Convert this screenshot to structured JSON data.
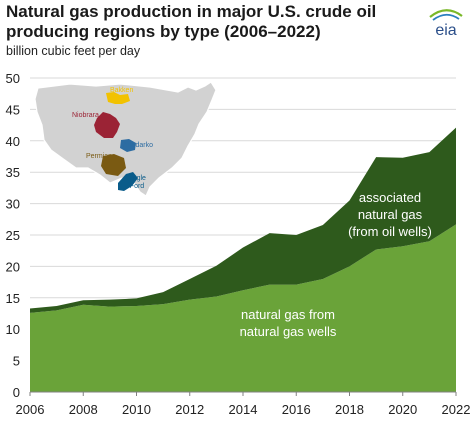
{
  "header": {
    "title_line1": "Natural gas production in major U.S. crude oil",
    "title_line2": "producing regions by type (2006–2022)",
    "subtitle": "billion cubic feet per day",
    "logo_text": "eia"
  },
  "inset_map": {
    "regions": [
      {
        "name": "Bakken",
        "color": "#f2c200"
      },
      {
        "name": "Niobrara",
        "color": "#9b2335"
      },
      {
        "name": "Anadarko",
        "color": "#2d6ca2"
      },
      {
        "name": "Permian",
        "color": "#7a5a12"
      },
      {
        "name": "Eagle Ford",
        "color": "#0a5c8a"
      }
    ]
  },
  "labels": {
    "associated_line1": "associated",
    "associated_line2": "natural gas",
    "associated_line3": "(from oil wells)",
    "natgas_line1": "natural gas from",
    "natgas_line2": "natural gas wells"
  },
  "colors": {
    "associated": "#2e5a1c",
    "nonassociated": "#6aa339",
    "grid": "#d9d9d9",
    "axis": "#808080"
  },
  "chart_data": {
    "type": "area",
    "stacked": true,
    "x": [
      2006,
      2007,
      2008,
      2009,
      2010,
      2011,
      2012,
      2013,
      2014,
      2015,
      2016,
      2017,
      2018,
      2019,
      2020,
      2021,
      2022
    ],
    "series": [
      {
        "name": "natural gas from natural gas wells",
        "values": [
          12.6,
          13.0,
          13.9,
          13.6,
          13.7,
          14.0,
          14.7,
          15.2,
          16.2,
          17.1,
          17.1,
          18.0,
          20.0,
          22.7,
          23.2,
          24.0,
          26.7
        ]
      },
      {
        "name": "associated natural gas (from oil wells)",
        "values": [
          0.7,
          0.7,
          0.7,
          1.1,
          1.2,
          1.9,
          3.3,
          4.9,
          6.8,
          8.2,
          7.9,
          8.6,
          10.5,
          14.7,
          14.1,
          14.2,
          15.4
        ]
      }
    ],
    "xticks": [
      2006,
      2008,
      2010,
      2012,
      2014,
      2016,
      2018,
      2020,
      2022
    ],
    "yticks": [
      0,
      5,
      10,
      15,
      20,
      25,
      30,
      35,
      40,
      45,
      50
    ],
    "xlim": [
      2006,
      2022
    ],
    "ylim": [
      0,
      50
    ],
    "grid": true
  }
}
